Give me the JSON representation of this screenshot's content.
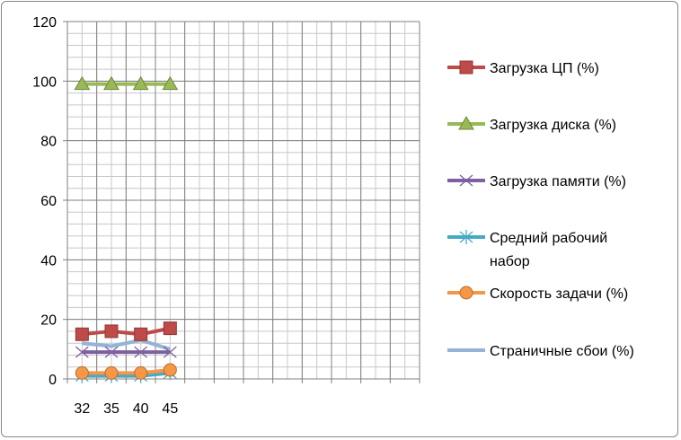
{
  "chart_data": {
    "type": "line",
    "categories": [
      "32",
      "35",
      "40",
      "45"
    ],
    "ylim": [
      0,
      120
    ],
    "yticks": [
      "0",
      "20",
      "40",
      "60",
      "80",
      "100",
      "120"
    ],
    "grid": true,
    "legend_position": "right",
    "series": [
      {
        "name": "Загрузка ЦП (%)",
        "values": [
          15,
          16,
          15,
          17
        ],
        "color": "#be4b48",
        "marker": "square"
      },
      {
        "name": "Загрузка диска (%)",
        "values": [
          99,
          99,
          99,
          99
        ],
        "color": "#98b954",
        "marker": "triangle"
      },
      {
        "name": "Загрузка памяти (%)",
        "values": [
          9,
          9,
          9,
          9
        ],
        "color": "#7d60a0",
        "marker": "x"
      },
      {
        "name": "Средний рабочий набор",
        "name_lines": [
          "Средний рабочий",
          "набор"
        ],
        "values": [
          1,
          1,
          1,
          2
        ],
        "color": "#46aac5",
        "marker": "star"
      },
      {
        "name": "Скорость задачи (%)",
        "values": [
          2,
          2,
          2,
          3
        ],
        "color": "#f79646",
        "marker": "circle"
      },
      {
        "name": "Страничные сбои   (%)",
        "values": [
          12,
          11,
          13,
          10
        ],
        "color": "#95b3d7",
        "marker": "none"
      }
    ]
  }
}
